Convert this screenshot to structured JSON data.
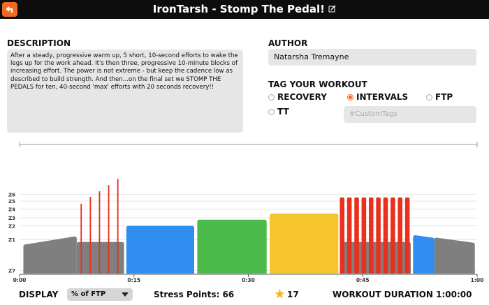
{
  "header": {
    "title": "IronTarsh - Stomp The Pedal!"
  },
  "description": {
    "heading": "DESCRIPTION",
    "text": "After a steady, progressive warm up, 5 short, 10-second efforts to wake the legs up for the work ahead. It's then three, progressive 10-minute blocks of increasing effort. The power is not extreme - but keep the cadence low as described to build strength. And then...on the final set we STOMP THE PEDALS for ten, 40-second 'max' efforts with 20 seconds recovery!!"
  },
  "author": {
    "heading": "AUTHOR",
    "name": "Natarsha Tremayne"
  },
  "tags": {
    "heading": "TAG YOUR WORKOUT",
    "options": [
      {
        "label": "RECOVERY",
        "selected": false
      },
      {
        "label": "INTERVALS",
        "selected": true
      },
      {
        "label": "FTP",
        "selected": false
      },
      {
        "label": "TT",
        "selected": false
      }
    ],
    "custom_placeholder": "#CustomTags"
  },
  "chart_data": {
    "type": "workout",
    "xlim": [
      0,
      60
    ],
    "xticks": [
      {
        "value": 0,
        "label": "0:00"
      },
      {
        "value": 15,
        "label": "0:15"
      },
      {
        "value": 30,
        "label": "0:30"
      },
      {
        "value": 45,
        "label": "0:45"
      },
      {
        "value": 60,
        "label": "1:00"
      }
    ],
    "ylim": [
      0,
      160
    ],
    "yticks": [
      {
        "value": 5,
        "label": "Z7"
      },
      {
        "value": 55,
        "label": "Z1"
      },
      {
        "value": 77,
        "label": "Z2"
      },
      {
        "value": 90,
        "label": "Z3"
      },
      {
        "value": 104,
        "label": "Z4"
      },
      {
        "value": 117,
        "label": "Z5"
      },
      {
        "value": 128,
        "label": "Z6"
      }
    ],
    "segments": [
      {
        "start": 0.5,
        "end": 7.5,
        "from": 47,
        "to": 60,
        "color": "#7f7f7f"
      },
      {
        "start": 7.5,
        "end": 13.7,
        "from": 51,
        "to": 51,
        "color": "#7f7f7f"
      },
      {
        "start": 8.0,
        "end": 8.17,
        "from": 113,
        "to": 113,
        "color": "#e8301c"
      },
      {
        "start": 9.2,
        "end": 9.37,
        "from": 124,
        "to": 124,
        "color": "#e8301c"
      },
      {
        "start": 10.4,
        "end": 10.57,
        "from": 133,
        "to": 133,
        "color": "#e8301c"
      },
      {
        "start": 11.6,
        "end": 11.77,
        "from": 143,
        "to": 143,
        "color": "#e8301c"
      },
      {
        "start": 12.8,
        "end": 12.97,
        "from": 153,
        "to": 153,
        "color": "#e8301c"
      },
      {
        "start": 14.0,
        "end": 22.9,
        "from": 77,
        "to": 77,
        "color": "#2f8ef0"
      },
      {
        "start": 23.3,
        "end": 32.4,
        "from": 87,
        "to": 87,
        "color": "#4cbb4c"
      },
      {
        "start": 32.8,
        "end": 41.8,
        "from": 97,
        "to": 97,
        "color": "#f6c42c"
      },
      {
        "start": 42.0,
        "end": 51.3,
        "from": 51,
        "to": 51,
        "color": "#7f7f7f"
      },
      {
        "start": 42.0,
        "end": 42.6,
        "from": 123,
        "to": 123,
        "color": "#e8301c"
      },
      {
        "start": 42.95,
        "end": 43.55,
        "from": 123,
        "to": 123,
        "color": "#e8301c"
      },
      {
        "start": 43.9,
        "end": 44.5,
        "from": 123,
        "to": 123,
        "color": "#e8301c"
      },
      {
        "start": 44.85,
        "end": 45.45,
        "from": 123,
        "to": 123,
        "color": "#e8301c"
      },
      {
        "start": 45.8,
        "end": 46.4,
        "from": 123,
        "to": 123,
        "color": "#e8301c"
      },
      {
        "start": 46.75,
        "end": 47.35,
        "from": 123,
        "to": 123,
        "color": "#e8301c"
      },
      {
        "start": 47.7,
        "end": 48.3,
        "from": 123,
        "to": 123,
        "color": "#e8301c"
      },
      {
        "start": 48.65,
        "end": 49.25,
        "from": 123,
        "to": 123,
        "color": "#e8301c"
      },
      {
        "start": 49.6,
        "end": 50.2,
        "from": 123,
        "to": 123,
        "color": "#e8301c"
      },
      {
        "start": 50.55,
        "end": 51.15,
        "from": 123,
        "to": 123,
        "color": "#e8301c"
      },
      {
        "start": 51.6,
        "end": 54.4,
        "from": 62,
        "to": 58,
        "color": "#2f8ef0"
      },
      {
        "start": 54.4,
        "end": 59.7,
        "from": 58,
        "to": 50,
        "color": "#7f7f7f"
      }
    ]
  },
  "footer": {
    "display_label": "DISPLAY",
    "display_option": "% of FTP",
    "stress_points": "Stress Points: 66",
    "stars": "17",
    "duration": "WORKOUT DURATION 1:00:00"
  }
}
